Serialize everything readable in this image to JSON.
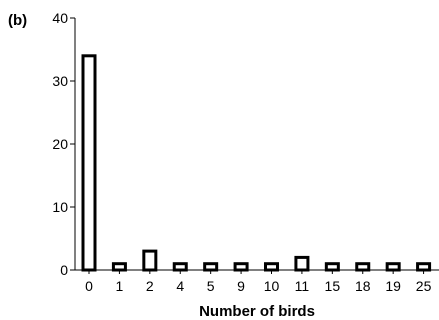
{
  "panel_label": "(b)",
  "chart_data": {
    "type": "bar",
    "title": "",
    "xlabel": "Number of birds",
    "ylabel": "",
    "categories": [
      "0",
      "1",
      "2",
      "4",
      "5",
      "9",
      "10",
      "11",
      "15",
      "18",
      "19",
      "25"
    ],
    "values": [
      34,
      1,
      3,
      1,
      1,
      1,
      1,
      2,
      1,
      1,
      1,
      1
    ],
    "ylim": [
      0,
      40
    ],
    "yticks": [
      "0",
      "10",
      "20",
      "30",
      "40"
    ],
    "grid": false,
    "bar_fill": "#ffffff",
    "bar_stroke": "#000000"
  }
}
